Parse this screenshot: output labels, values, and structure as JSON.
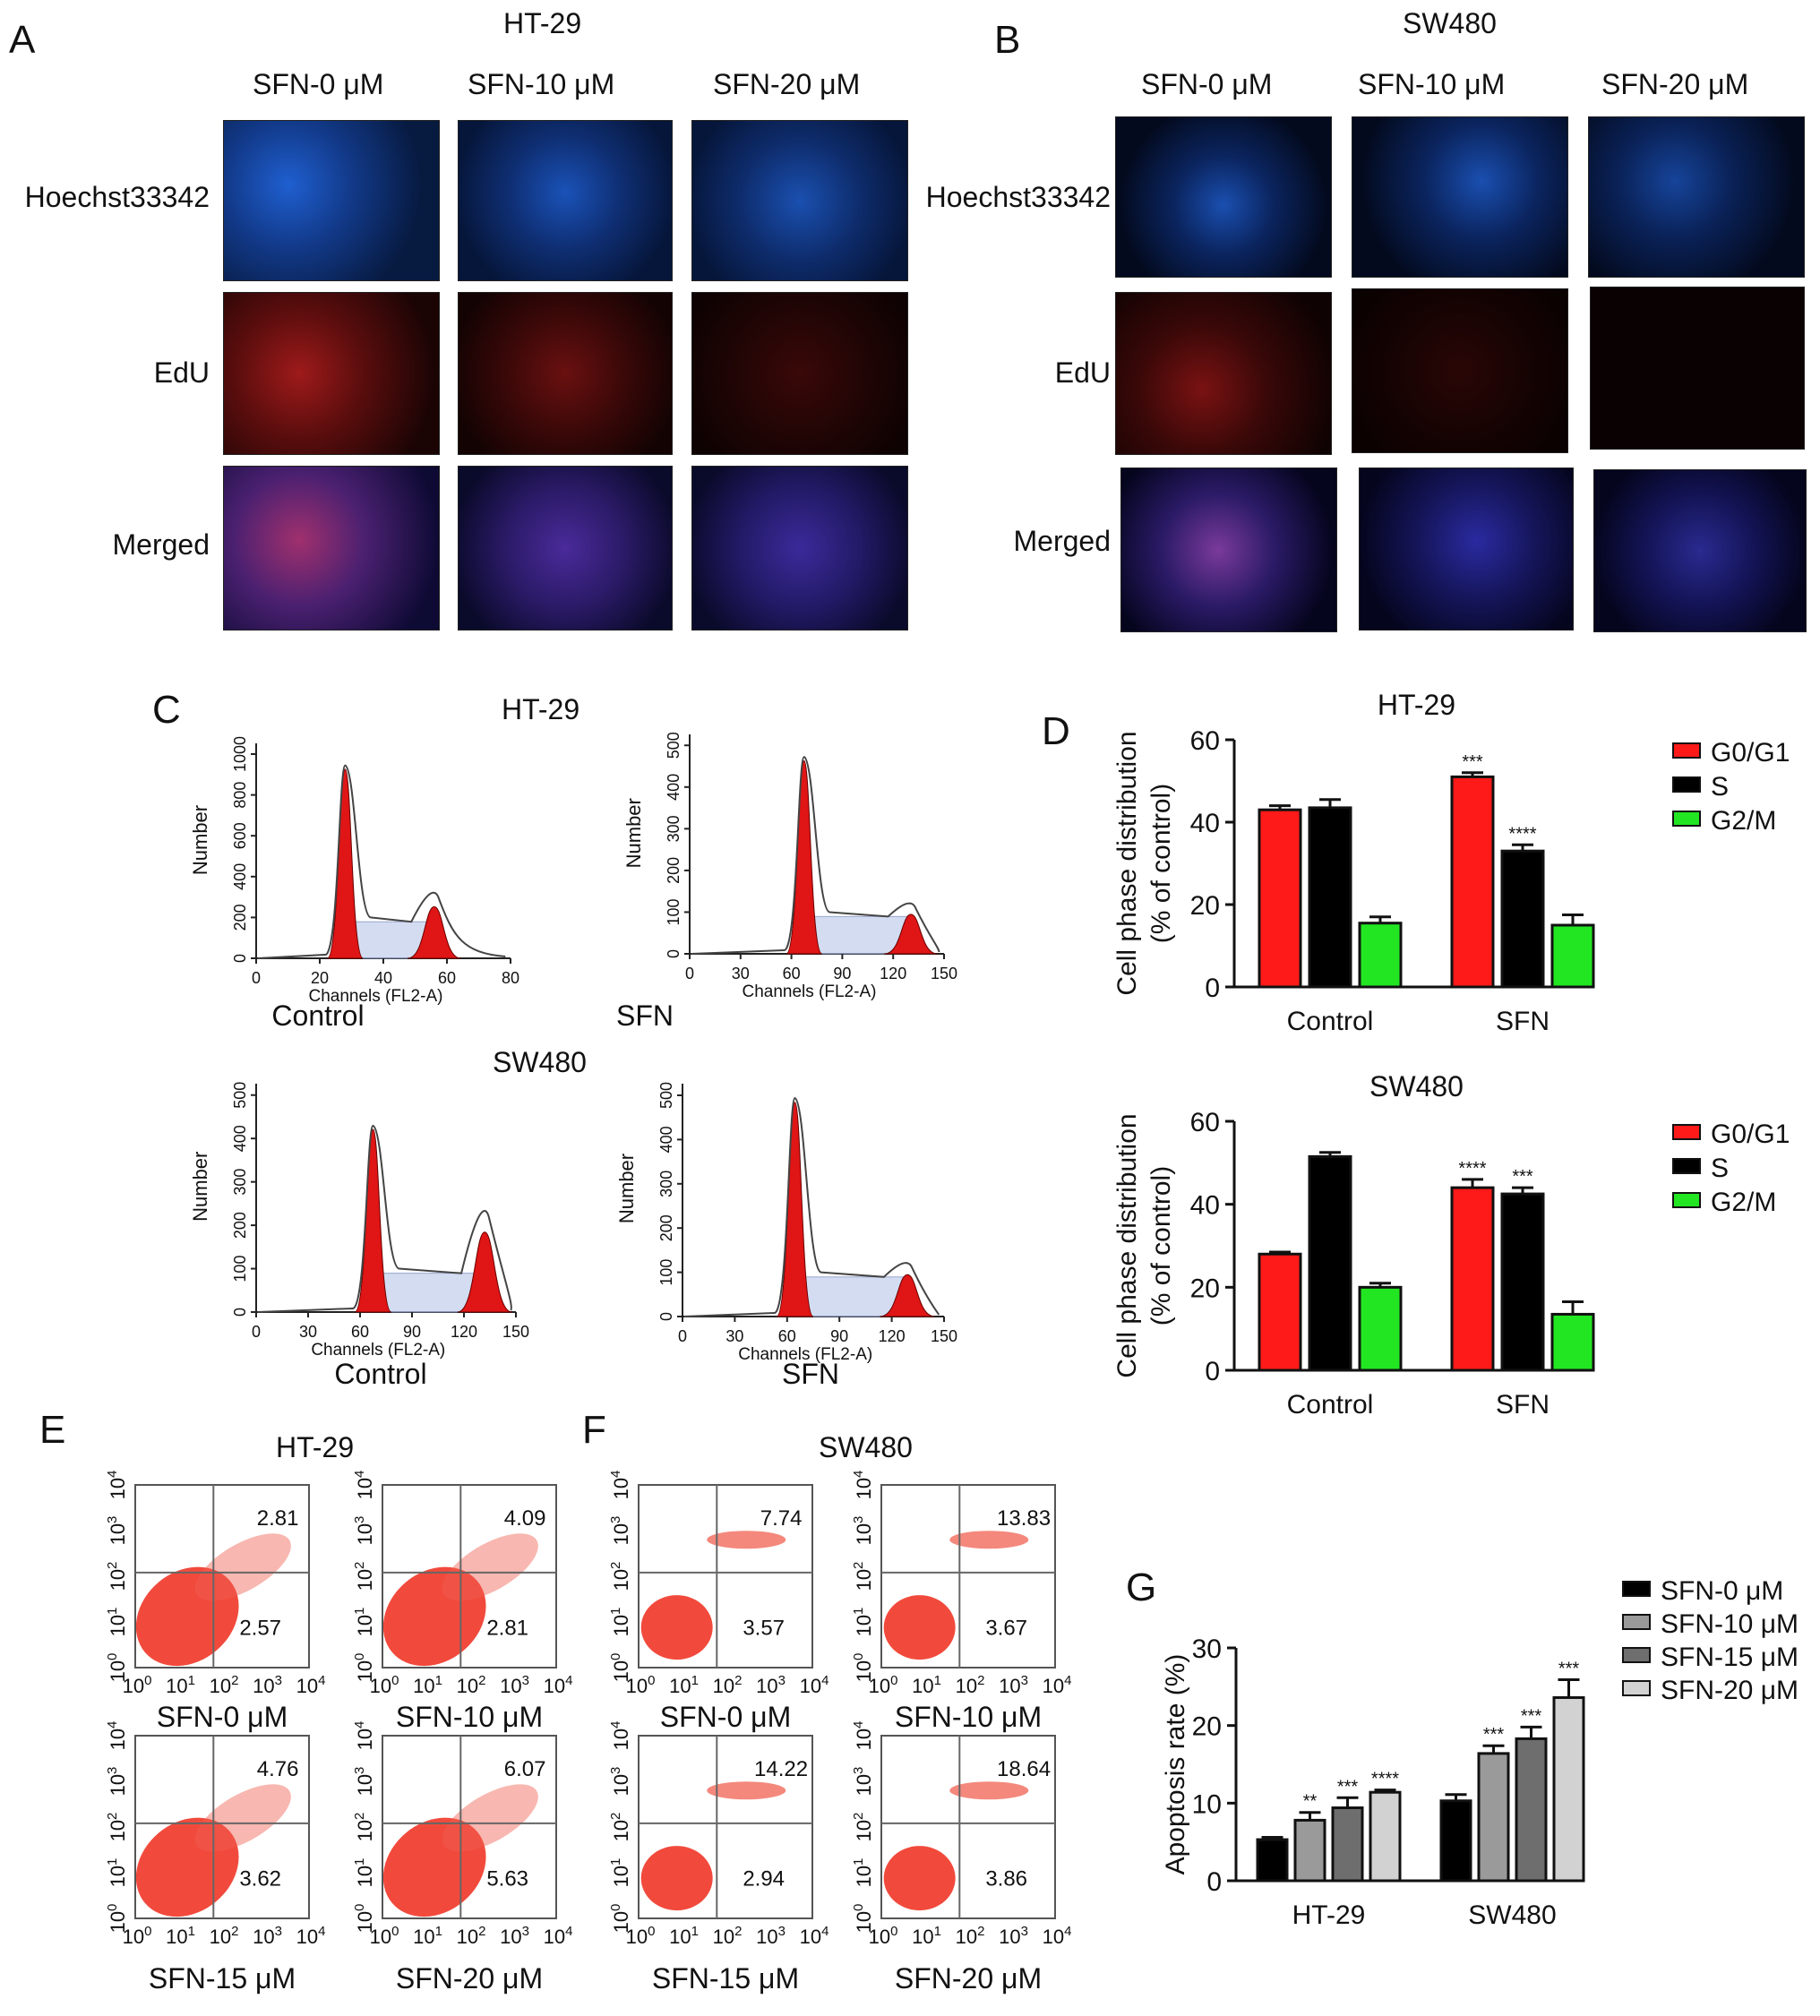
{
  "panel_letters": {
    "a": "A",
    "b": "B",
    "c": "C",
    "d": "D",
    "e": "E",
    "f": "F",
    "g": "G"
  },
  "panel_a": {
    "title": "HT-29",
    "columns": [
      "SFN-0 μM",
      "SFN-10 μM",
      "SFN-20 μM"
    ],
    "rows": [
      "Hoechst33342",
      "EdU",
      "Merged"
    ]
  },
  "panel_b": {
    "title": "SW480",
    "columns": [
      "SFN-0 μM",
      "SFN-10 μM",
      "SFN-20 μM"
    ],
    "rows": [
      "Hoechst33342",
      "EdU",
      "Merged"
    ]
  },
  "panel_c": {
    "title_top": "HT-29",
    "title_bottom": "SW480",
    "ylabel": "Number",
    "xlabel": "Channels (FL2-A)",
    "plots": [
      {
        "caption": "Control",
        "xticks": [
          "0",
          "20",
          "40",
          "60",
          "80"
        ],
        "yticks": [
          "0",
          "200",
          "400",
          "600",
          "800",
          "1000"
        ]
      },
      {
        "caption": "SFN",
        "xticks": [
          "0",
          "30",
          "60",
          "90",
          "120",
          "150"
        ],
        "yticks": [
          "0",
          "100",
          "200",
          "300",
          "400",
          "500"
        ]
      },
      {
        "caption": "Control",
        "xticks": [
          "0",
          "30",
          "60",
          "90",
          "120",
          "150"
        ],
        "yticks": [
          "0",
          "100",
          "200",
          "300",
          "400",
          "500"
        ]
      },
      {
        "caption": "SFN",
        "xticks": [
          "0",
          "30",
          "60",
          "90",
          "120",
          "150"
        ],
        "yticks": [
          "0",
          "100",
          "200",
          "300",
          "400",
          "500"
        ]
      }
    ]
  },
  "panel_e": {
    "title": "HT-29",
    "plots": [
      {
        "caption": "SFN-0 μM",
        "upper": "2.81",
        "lower": "2.57"
      },
      {
        "caption": "SFN-10 μM",
        "upper": "4.09",
        "lower": "2.81"
      },
      {
        "caption": "SFN-15 μM",
        "upper": "4.76",
        "lower": "3.62"
      },
      {
        "caption": "SFN-20 μM",
        "upper": "6.07",
        "lower": "5.63"
      }
    ]
  },
  "panel_f": {
    "title": "SW480",
    "plots": [
      {
        "caption": "SFN-0 μM",
        "upper": "7.74",
        "lower": "3.57"
      },
      {
        "caption": "SFN-10 μM",
        "upper": "13.83",
        "lower": "3.67"
      },
      {
        "caption": "SFN-15 μM",
        "upper": "14.22",
        "lower": "2.94"
      },
      {
        "caption": "SFN-20 μM",
        "upper": "18.64",
        "lower": "3.86"
      }
    ]
  },
  "chart_data": [
    {
      "type": "bar",
      "panel": "D",
      "title": "HT-29",
      "ylabel": "Cell phase distribution\n(% of control)",
      "categories": [
        "Control",
        "SFN"
      ],
      "ylim": [
        0,
        60
      ],
      "yticks": [
        "0",
        "20",
        "40",
        "60"
      ],
      "series": [
        {
          "name": "G0/G1",
          "color": "#ff1a1a",
          "values": [
            43,
            51
          ],
          "errors": [
            1,
            1
          ],
          "sig": [
            "",
            "***"
          ]
        },
        {
          "name": "S",
          "color": "#000000",
          "values": [
            43.5,
            33
          ],
          "errors": [
            2,
            1.5
          ],
          "sig": [
            "",
            "****"
          ]
        },
        {
          "name": "G2/M",
          "color": "#22e622",
          "values": [
            15.5,
            15
          ],
          "errors": [
            1.5,
            2.5
          ],
          "sig": [
            "",
            ""
          ]
        }
      ]
    },
    {
      "type": "bar",
      "panel": "D",
      "title": "SW480",
      "ylabel": "Cell phase distribution\n(% of control)",
      "categories": [
        "Control",
        "SFN"
      ],
      "ylim": [
        0,
        60
      ],
      "yticks": [
        "0",
        "20",
        "40",
        "60"
      ],
      "series": [
        {
          "name": "G0/G1",
          "color": "#ff1a1a",
          "values": [
            28,
            44
          ],
          "errors": [
            0.5,
            2
          ],
          "sig": [
            "",
            "****"
          ]
        },
        {
          "name": "S",
          "color": "#000000",
          "values": [
            51.5,
            42.5
          ],
          "errors": [
            1,
            1.5
          ],
          "sig": [
            "",
            "***"
          ]
        },
        {
          "name": "G2/M",
          "color": "#22e622",
          "values": [
            20,
            13.5
          ],
          "errors": [
            1,
            3
          ],
          "sig": [
            "",
            ""
          ]
        }
      ]
    },
    {
      "type": "bar",
      "panel": "G",
      "title": "",
      "ylabel": "Apoptosis rate (%)",
      "categories": [
        "HT-29",
        "SW480"
      ],
      "ylim": [
        0,
        30
      ],
      "yticks": [
        "0",
        "10",
        "20",
        "30"
      ],
      "series": [
        {
          "name": "SFN-0 μM",
          "color": "#000000",
          "values": [
            5.3,
            10.3
          ],
          "errors": [
            0.3,
            0.8
          ],
          "sig": [
            "",
            ""
          ]
        },
        {
          "name": "SFN-10 μM",
          "color": "#9a9a9a",
          "values": [
            7.8,
            16.4
          ],
          "errors": [
            1,
            1
          ],
          "sig": [
            "**",
            "***"
          ]
        },
        {
          "name": "SFN-15 μM",
          "color": "#6e6e6e",
          "values": [
            9.4,
            18.3
          ],
          "errors": [
            1.3,
            1.5
          ],
          "sig": [
            "***",
            "***"
          ]
        },
        {
          "name": "SFN-20 μM",
          "color": "#d2d2d2",
          "values": [
            11.4,
            23.6
          ],
          "errors": [
            0.3,
            2.3
          ],
          "sig": [
            "****",
            "***"
          ]
        }
      ]
    }
  ]
}
